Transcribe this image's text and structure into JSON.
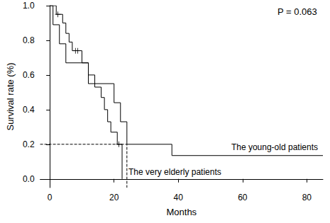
{
  "chart_data": {
    "type": "survival",
    "x_label": "Months",
    "y_label": "Survival rate (%)",
    "xlim": [
      -3,
      85
    ],
    "xticks": [
      0,
      20,
      40,
      60,
      80
    ],
    "ylim": [
      -0.05,
      1.0
    ],
    "yticks": [
      {
        "value": 0,
        "label": "0.0"
      },
      0.2,
      0.4,
      0.6,
      0.8,
      {
        "value": 1,
        "label": "1.0"
      }
    ],
    "grid": false,
    "annotations": [
      "P = 0.063"
    ],
    "reference": {
      "x": 24,
      "y": 0.2,
      "line_style": "dashed"
    },
    "series": [
      {
        "name": "The young-old patients",
        "color": "#000000",
        "line_style": "solid",
        "x": [
          0,
          1,
          3,
          5,
          12,
          20,
          22,
          24,
          38,
          85
        ],
        "values": [
          1.0,
          0.89,
          0.78,
          0.67,
          0.55,
          0.44,
          0.33,
          0.2,
          0.135,
          0.135
        ],
        "censored": {
          "x": [],
          "values": []
        }
      },
      {
        "name": "The very elderly patients",
        "color": "#000000",
        "line_style": "solid",
        "marker": "plus",
        "x": [
          0,
          2,
          4,
          5,
          6,
          7,
          10,
          12,
          14,
          16,
          17,
          18,
          19,
          21,
          22.5
        ],
        "values": [
          1.0,
          0.95,
          0.9,
          0.84,
          0.79,
          0.74,
          0.67,
          0.6,
          0.53,
          0.47,
          0.4,
          0.33,
          0.27,
          0.2,
          0.0
        ],
        "censored": {
          "x": [
            2.5,
            8,
            8.7,
            21.5
          ],
          "values": [
            0.95,
            0.74,
            0.74,
            0.2
          ]
        }
      }
    ]
  }
}
